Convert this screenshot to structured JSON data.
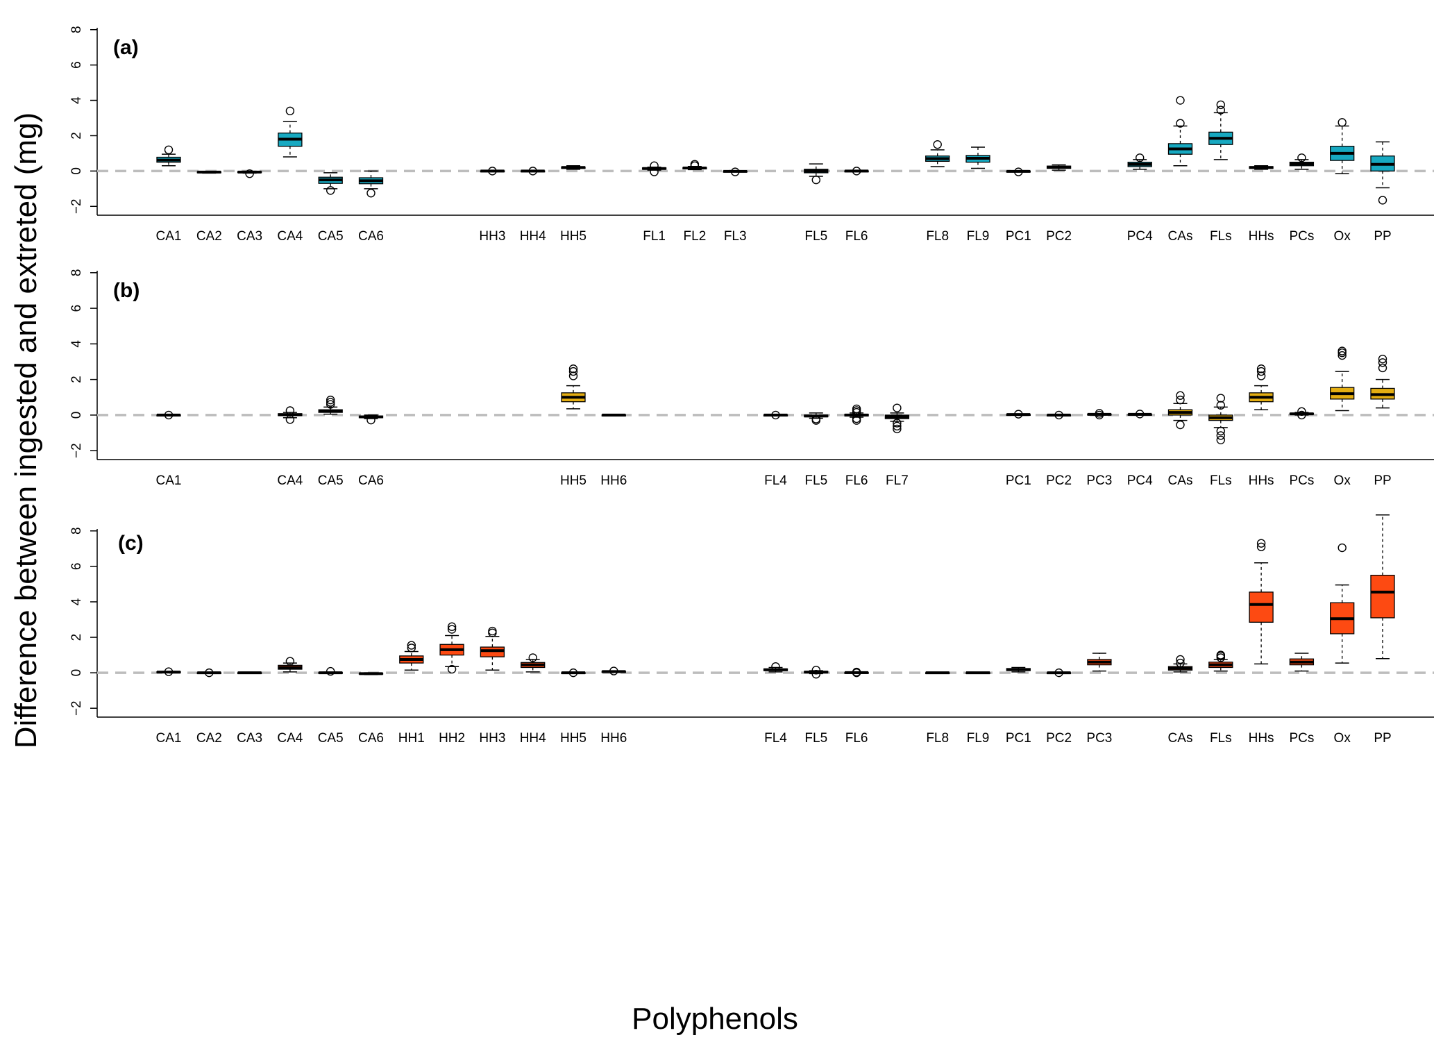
{
  "ylabel": "Difference between ingested and extreted (mg)",
  "xlabel": "Polyphenols",
  "colors": {
    "a": "#17a9c1",
    "b": "#e4ae12",
    "c": "#fd4a12",
    "reference_line": "#bdbdbd"
  },
  "chart_data": [
    {
      "type": "boxplot",
      "panel_label": "(a)",
      "ylim": [
        -2.5,
        8.5
      ],
      "yticks": [
        -2,
        0,
        2,
        4,
        6,
        8
      ],
      "reference_line": 0,
      "grid": false,
      "legend": "none",
      "categories": [
        "CA1",
        "CA2",
        "CA3",
        "CA4",
        "CA5",
        "CA6",
        "HH3",
        "HH4",
        "HH5",
        "FL1",
        "FL2",
        "FL3",
        "FL5",
        "FL6",
        "FL8",
        "FL9",
        "PC1",
        "PC2",
        "PC4",
        "CAs",
        "FLs",
        "HHs",
        "PCs",
        "Ox",
        "PP"
      ],
      "slots": [
        0,
        1,
        2,
        3,
        4,
        5,
        8,
        9,
        10,
        12,
        13,
        14,
        16,
        17,
        19,
        20,
        21,
        22,
        24,
        25,
        26,
        27,
        28,
        29,
        30
      ],
      "boxes": [
        {
          "label": "CA1",
          "whislo": 0.3,
          "q1": 0.5,
          "median": 0.62,
          "q3": 0.78,
          "whishi": 0.95,
          "outliers": [
            1.2
          ]
        },
        {
          "label": "CA2",
          "whislo": -0.12,
          "q1": -0.08,
          "median": -0.06,
          "q3": -0.04,
          "whishi": -0.02,
          "outliers": []
        },
        {
          "label": "CA3",
          "whislo": -0.12,
          "q1": -0.08,
          "median": -0.06,
          "q3": -0.03,
          "whishi": -0.01,
          "outliers": [
            -0.15
          ]
        },
        {
          "label": "CA4",
          "whislo": 0.8,
          "q1": 1.4,
          "median": 1.8,
          "q3": 2.15,
          "whishi": 2.8,
          "outliers": [
            3.4
          ]
        },
        {
          "label": "CA5",
          "whislo": -1.0,
          "q1": -0.7,
          "median": -0.5,
          "q3": -0.35,
          "whishi": -0.1,
          "outliers": [
            -1.1
          ]
        },
        {
          "label": "CA6",
          "whislo": -1.0,
          "q1": -0.72,
          "median": -0.55,
          "q3": -0.38,
          "whishi": 0.0,
          "outliers": [
            -1.25
          ]
        },
        {
          "label": "HH3",
          "whislo": 0.0,
          "q1": 0.0,
          "median": 0.0,
          "q3": 0.01,
          "whishi": 0.01,
          "outliers": [
            0.0
          ]
        },
        {
          "label": "HH4",
          "whislo": 0.0,
          "q1": 0.0,
          "median": 0.0,
          "q3": 0.01,
          "whishi": 0.01,
          "outliers": [
            0.0
          ]
        },
        {
          "label": "HH5",
          "whislo": 0.1,
          "q1": 0.15,
          "median": 0.2,
          "q3": 0.23,
          "whishi": 0.3,
          "outliers": []
        },
        {
          "label": "FL1",
          "whislo": 0.05,
          "q1": 0.1,
          "median": 0.14,
          "q3": 0.18,
          "whishi": 0.22,
          "outliers": [
            0.3,
            -0.05
          ]
        },
        {
          "label": "FL2",
          "whislo": 0.08,
          "q1": 0.12,
          "median": 0.17,
          "q3": 0.2,
          "whishi": 0.26,
          "outliers": [
            0.3,
            0.38
          ]
        },
        {
          "label": "FL3",
          "whislo": -0.05,
          "q1": -0.03,
          "median": -0.02,
          "q3": 0.0,
          "whishi": 0.01,
          "outliers": [
            -0.05
          ]
        },
        {
          "label": "FL5",
          "whislo": -0.3,
          "q1": -0.1,
          "median": 0.0,
          "q3": 0.1,
          "whishi": 0.4,
          "outliers": [
            -0.5
          ]
        },
        {
          "label": "FL6",
          "whislo": 0.0,
          "q1": 0.0,
          "median": 0.0,
          "q3": 0.01,
          "whishi": 0.01,
          "outliers": [
            0.0
          ]
        },
        {
          "label": "FL8",
          "whislo": 0.25,
          "q1": 0.55,
          "median": 0.7,
          "q3": 0.85,
          "whishi": 1.2,
          "outliers": [
            1.5
          ]
        },
        {
          "label": "FL9",
          "whislo": 0.15,
          "q1": 0.5,
          "median": 0.72,
          "q3": 0.88,
          "whishi": 1.35,
          "outliers": []
        },
        {
          "label": "PC1",
          "whislo": -0.05,
          "q1": -0.03,
          "median": -0.02,
          "q3": 0.0,
          "whishi": 0.01,
          "outliers": [
            -0.05
          ]
        },
        {
          "label": "PC2",
          "whislo": 0.05,
          "q1": 0.15,
          "median": 0.22,
          "q3": 0.28,
          "whishi": 0.35,
          "outliers": []
        },
        {
          "label": "PC4",
          "whislo": 0.1,
          "q1": 0.25,
          "median": 0.38,
          "q3": 0.5,
          "whishi": 0.65,
          "outliers": [
            0.75
          ]
        },
        {
          "label": "CAs",
          "whislo": 0.3,
          "q1": 0.95,
          "median": 1.25,
          "q3": 1.55,
          "whishi": 2.55,
          "outliers": [
            2.7,
            4.0
          ]
        },
        {
          "label": "FLs",
          "whislo": 0.65,
          "q1": 1.5,
          "median": 1.85,
          "q3": 2.2,
          "whishi": 3.3,
          "outliers": [
            3.45,
            3.75
          ]
        },
        {
          "label": "HHs",
          "whislo": 0.1,
          "q1": 0.15,
          "median": 0.2,
          "q3": 0.25,
          "whishi": 0.3,
          "outliers": []
        },
        {
          "label": "PCs",
          "whislo": 0.1,
          "q1": 0.3,
          "median": 0.4,
          "q3": 0.5,
          "whishi": 0.65,
          "outliers": [
            0.75
          ]
        },
        {
          "label": "Ox",
          "whislo": -0.15,
          "q1": 0.6,
          "median": 1.0,
          "q3": 1.4,
          "whishi": 2.55,
          "outliers": [
            2.75
          ]
        },
        {
          "label": "PP",
          "whislo": -0.95,
          "q1": 0.0,
          "median": 0.38,
          "q3": 0.85,
          "whishi": 1.65,
          "outliers": [
            -1.65
          ]
        }
      ]
    },
    {
      "type": "boxplot",
      "panel_label": "(b)",
      "ylim": [
        -2.5,
        8.5
      ],
      "yticks": [
        -2,
        0,
        2,
        4,
        6,
        8
      ],
      "reference_line": 0,
      "grid": false,
      "legend": "none",
      "categories": [
        "CA1",
        "CA4",
        "CA5",
        "CA6",
        "HH5",
        "HH6",
        "FL4",
        "FL5",
        "FL6",
        "FL7",
        "PC1",
        "PC2",
        "PC3",
        "PC4",
        "CAs",
        "FLs",
        "HHs",
        "PCs",
        "Ox",
        "PP"
      ],
      "slots": [
        0,
        3,
        4,
        5,
        10,
        11,
        15,
        16,
        17,
        18,
        21,
        22,
        23,
        24,
        25,
        26,
        27,
        28,
        29,
        30
      ],
      "boxes": [
        {
          "label": "CA1",
          "whislo": 0.0,
          "q1": 0.0,
          "median": 0.0,
          "q3": 0.01,
          "whishi": 0.01,
          "outliers": [
            0.0
          ]
        },
        {
          "label": "CA4",
          "whislo": -0.15,
          "q1": -0.03,
          "median": 0.02,
          "q3": 0.08,
          "whishi": 0.15,
          "outliers": [
            0.25,
            -0.25
          ]
        },
        {
          "label": "CA5",
          "whislo": 0.05,
          "q1": 0.15,
          "median": 0.22,
          "q3": 0.3,
          "whishi": 0.45,
          "outliers": [
            0.6,
            0.72,
            0.85
          ]
        },
        {
          "label": "CA6",
          "whislo": -0.2,
          "q1": -0.15,
          "median": -0.1,
          "q3": -0.05,
          "whishi": 0.0,
          "outliers": [
            -0.28
          ]
        },
        {
          "label": "HH5",
          "whislo": 0.35,
          "q1": 0.75,
          "median": 1.0,
          "q3": 1.25,
          "whishi": 1.65,
          "outliers": [
            2.2,
            2.45,
            2.6
          ]
        },
        {
          "label": "HH6",
          "whislo": 0.0,
          "q1": 0.0,
          "median": 0.0,
          "q3": 0.01,
          "whishi": 0.01,
          "outliers": []
        },
        {
          "label": "FL4",
          "whislo": 0.0,
          "q1": 0.0,
          "median": 0.0,
          "q3": 0.01,
          "whishi": 0.01,
          "outliers": [
            0.0
          ]
        },
        {
          "label": "FL5",
          "whislo": -0.18,
          "q1": -0.1,
          "median": -0.05,
          "q3": 0.0,
          "whishi": 0.12,
          "outliers": [
            -0.22,
            -0.3
          ]
        },
        {
          "label": "FL6",
          "whislo": -0.12,
          "q1": -0.05,
          "median": 0.0,
          "q3": 0.05,
          "whishi": 0.12,
          "outliers": [
            0.15,
            0.25,
            0.35,
            -0.2,
            -0.3
          ]
        },
        {
          "label": "FL7",
          "whislo": -0.35,
          "q1": -0.2,
          "median": -0.1,
          "q3": 0.0,
          "whishi": 0.12,
          "outliers": [
            0.4,
            -0.45,
            -0.62,
            -0.78
          ]
        },
        {
          "label": "PC1",
          "whislo": 0.01,
          "q1": 0.02,
          "median": 0.03,
          "q3": 0.04,
          "whishi": 0.05,
          "outliers": [
            0.05
          ]
        },
        {
          "label": "PC2",
          "whislo": 0.0,
          "q1": 0.0,
          "median": 0.0,
          "q3": 0.01,
          "whishi": 0.01,
          "outliers": [
            0.0
          ]
        },
        {
          "label": "PC3",
          "whislo": 0.0,
          "q1": 0.02,
          "median": 0.04,
          "q3": 0.06,
          "whishi": 0.08,
          "outliers": [
            0.1,
            0.0
          ]
        },
        {
          "label": "PC4",
          "whislo": 0.02,
          "q1": 0.03,
          "median": 0.04,
          "q3": 0.05,
          "whishi": 0.06,
          "outliers": [
            0.06
          ]
        },
        {
          "label": "CAs",
          "whislo": -0.3,
          "q1": 0.0,
          "median": 0.15,
          "q3": 0.3,
          "whishi": 0.65,
          "outliers": [
            0.85,
            1.1,
            -0.55
          ]
        },
        {
          "label": "FLs",
          "whislo": -0.7,
          "q1": -0.3,
          "median": -0.15,
          "q3": 0.0,
          "whishi": 0.45,
          "outliers": [
            0.55,
            0.95,
            -0.9,
            -1.15,
            -1.4
          ]
        },
        {
          "label": "HHs",
          "whislo": 0.3,
          "q1": 0.75,
          "median": 1.0,
          "q3": 1.25,
          "whishi": 1.65,
          "outliers": [
            2.2,
            2.45,
            2.6
          ]
        },
        {
          "label": "PCs",
          "whislo": 0.0,
          "q1": 0.04,
          "median": 0.07,
          "q3": 0.1,
          "whishi": 0.15,
          "outliers": [
            0.2,
            0.0
          ]
        },
        {
          "label": "Ox",
          "whislo": 0.25,
          "q1": 0.9,
          "median": 1.2,
          "q3": 1.55,
          "whishi": 2.45,
          "outliers": [
            3.35,
            3.5,
            3.6
          ]
        },
        {
          "label": "PP",
          "whislo": 0.4,
          "q1": 0.9,
          "median": 1.15,
          "q3": 1.5,
          "whishi": 2.0,
          "outliers": [
            2.65,
            2.95,
            3.15
          ]
        }
      ]
    },
    {
      "type": "boxplot",
      "panel_label": "(c)",
      "ylim": [
        -2.5,
        8.5
      ],
      "yticks": [
        -2,
        0,
        2,
        4,
        6,
        8
      ],
      "reference_line": 0,
      "grid": false,
      "legend": "none",
      "categories": [
        "CA1",
        "CA2",
        "CA3",
        "CA4",
        "CA5",
        "CA6",
        "HH1",
        "HH2",
        "HH3",
        "HH4",
        "HH5",
        "HH6",
        "FL4",
        "FL5",
        "FL6",
        "FL8",
        "FL9",
        "PC1",
        "PC2",
        "PC3",
        "CAs",
        "FLs",
        "HHs",
        "PCs",
        "Ox",
        "PP"
      ],
      "slots": [
        0,
        1,
        2,
        3,
        4,
        5,
        6,
        7,
        8,
        9,
        10,
        11,
        15,
        16,
        17,
        19,
        20,
        21,
        22,
        23,
        25,
        26,
        27,
        28,
        29,
        30
      ],
      "boxes": [
        {
          "label": "CA1",
          "whislo": 0.0,
          "q1": 0.02,
          "median": 0.04,
          "q3": 0.06,
          "whishi": 0.08,
          "outliers": [
            0.06
          ]
        },
        {
          "label": "CA2",
          "whislo": 0.0,
          "q1": 0.0,
          "median": 0.0,
          "q3": 0.01,
          "whishi": 0.01,
          "outliers": [
            0.0
          ]
        },
        {
          "label": "CA3",
          "whislo": 0.0,
          "q1": 0.0,
          "median": 0.0,
          "q3": 0.01,
          "whishi": 0.01,
          "outliers": []
        },
        {
          "label": "CA4",
          "whislo": 0.05,
          "q1": 0.2,
          "median": 0.3,
          "q3": 0.42,
          "whishi": 0.55,
          "outliers": [
            0.65
          ]
        },
        {
          "label": "CA5",
          "whislo": -0.02,
          "q1": -0.01,
          "median": 0.0,
          "q3": 0.02,
          "whishi": 0.04,
          "outliers": [
            0.08
          ]
        },
        {
          "label": "CA6",
          "whislo": -0.1,
          "q1": -0.08,
          "median": -0.05,
          "q3": -0.02,
          "whishi": 0.0,
          "outliers": []
        },
        {
          "label": "HH1",
          "whislo": 0.15,
          "q1": 0.55,
          "median": 0.75,
          "q3": 0.95,
          "whishi": 1.2,
          "outliers": [
            1.4,
            1.55
          ]
        },
        {
          "label": "HH2",
          "whislo": 0.35,
          "q1": 1.0,
          "median": 1.3,
          "q3": 1.6,
          "whishi": 2.1,
          "outliers": [
            2.45,
            2.6,
            0.2
          ]
        },
        {
          "label": "HH3",
          "whislo": 0.15,
          "q1": 0.9,
          "median": 1.25,
          "q3": 1.45,
          "whishi": 2.05,
          "outliers": [
            2.25,
            2.35
          ]
        },
        {
          "label": "HH4",
          "whislo": 0.05,
          "q1": 0.3,
          "median": 0.45,
          "q3": 0.58,
          "whishi": 0.75,
          "outliers": [
            0.85
          ]
        },
        {
          "label": "HH5",
          "whislo": 0.0,
          "q1": 0.0,
          "median": 0.0,
          "q3": 0.01,
          "whishi": 0.01,
          "outliers": [
            0.0
          ]
        },
        {
          "label": "HH6",
          "whislo": 0.05,
          "q1": 0.06,
          "median": 0.07,
          "q3": 0.08,
          "whishi": 0.09,
          "outliers": [
            0.1
          ]
        },
        {
          "label": "FL4",
          "whislo": 0.05,
          "q1": 0.12,
          "median": 0.17,
          "q3": 0.22,
          "whishi": 0.3,
          "outliers": [
            0.35
          ]
        },
        {
          "label": "FL5",
          "whislo": -0.05,
          "q1": 0.0,
          "median": 0.04,
          "q3": 0.08,
          "whishi": 0.12,
          "outliers": [
            0.15,
            -0.08
          ]
        },
        {
          "label": "FL6",
          "whislo": 0.0,
          "q1": 0.0,
          "median": 0.01,
          "q3": 0.02,
          "whishi": 0.03,
          "outliers": [
            0.04,
            0.0
          ]
        },
        {
          "label": "FL8",
          "whislo": 0.0,
          "q1": 0.0,
          "median": 0.0,
          "q3": 0.01,
          "whishi": 0.01,
          "outliers": []
        },
        {
          "label": "FL9",
          "whislo": 0.0,
          "q1": 0.0,
          "median": 0.0,
          "q3": 0.01,
          "whishi": 0.01,
          "outliers": []
        },
        {
          "label": "PC1",
          "whislo": 0.05,
          "q1": 0.12,
          "median": 0.18,
          "q3": 0.24,
          "whishi": 0.3,
          "outliers": []
        },
        {
          "label": "PC2",
          "whislo": 0.0,
          "q1": 0.0,
          "median": 0.0,
          "q3": 0.01,
          "whishi": 0.01,
          "outliers": [
            0.0
          ]
        },
        {
          "label": "PC3",
          "whislo": 0.1,
          "q1": 0.45,
          "median": 0.6,
          "q3": 0.75,
          "whishi": 1.1,
          "outliers": []
        },
        {
          "label": "CAs",
          "whislo": 0.05,
          "q1": 0.15,
          "median": 0.25,
          "q3": 0.35,
          "whishi": 0.5,
          "outliers": [
            0.55,
            0.75
          ]
        },
        {
          "label": "FLs",
          "whislo": 0.1,
          "q1": 0.3,
          "median": 0.45,
          "q3": 0.6,
          "whishi": 0.75,
          "outliers": [
            0.85,
            0.95,
            1.0
          ]
        },
        {
          "label": "HHs",
          "whislo": 0.5,
          "q1": 2.85,
          "median": 3.85,
          "q3": 4.55,
          "whishi": 6.2,
          "outliers": [
            7.1,
            7.3
          ]
        },
        {
          "label": "PCs",
          "whislo": 0.1,
          "q1": 0.45,
          "median": 0.6,
          "q3": 0.78,
          "whishi": 1.1,
          "outliers": []
        },
        {
          "label": "Ox",
          "whislo": 0.55,
          "q1": 2.2,
          "median": 3.05,
          "q3": 3.95,
          "whishi": 4.95,
          "outliers": [
            7.05
          ]
        },
        {
          "label": "PP",
          "whislo": 0.8,
          "q1": 3.1,
          "median": 4.55,
          "q3": 5.5,
          "whishi": 8.9,
          "outliers": []
        }
      ]
    }
  ]
}
